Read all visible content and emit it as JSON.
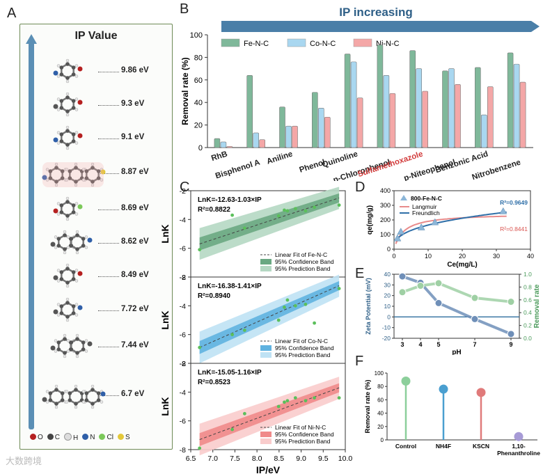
{
  "panel_labels": {
    "a": "A",
    "b": "B",
    "c": "C",
    "d": "D",
    "e": "E",
    "f": "F"
  },
  "panelA": {
    "title": "IP Value",
    "values": [
      "9.86 eV",
      "9.3 eV",
      "9.1 eV",
      "8.87 eV",
      "8.69 eV",
      "8.62 eV",
      "8.49 eV",
      "7.72 eV",
      "7.44 eV",
      "6.7 eV"
    ],
    "legend": [
      {
        "symbol": "O",
        "color": "#b52020"
      },
      {
        "symbol": "C",
        "color": "#444444"
      },
      {
        "symbol": "H",
        "color": "#dddddd"
      },
      {
        "symbol": "N",
        "color": "#2f5fa8"
      },
      {
        "symbol": "Cl",
        "color": "#7cc95a"
      },
      {
        "symbol": "S",
        "color": "#e3c83a"
      }
    ]
  },
  "watermark": "大数跨境",
  "chart_data": [
    {
      "id": "B",
      "type": "bar",
      "banner": "IP increasing",
      "title": "",
      "xlabel": "",
      "ylabel": "Removal rate (%)",
      "ylim": [
        0,
        100
      ],
      "yticks": [
        0,
        20,
        40,
        60,
        80,
        100
      ],
      "categories": [
        "RhB",
        "Bisphenol A",
        "Aniline",
        "Phenol",
        "Quinoline",
        "p-Chlorophenol",
        "Sulfamethoxazole",
        "p-Niteophenol",
        "Benzonic Acid",
        "Nitrobenzene"
      ],
      "highlight_category": "Sulfamethoxazole",
      "series": [
        {
          "name": "Fe-N-C",
          "color": "#7fb89a",
          "values": [
            8,
            64,
            36,
            49,
            83,
            91,
            86,
            68,
            71,
            84
          ]
        },
        {
          "name": "Co-N-C",
          "color": "#a9d7f0",
          "values": [
            5,
            13,
            19,
            35,
            76,
            64,
            70,
            70,
            29,
            74
          ]
        },
        {
          "name": "Ni-N-C",
          "color": "#f4a7a7",
          "values": [
            1,
            7,
            19,
            27,
            44,
            48,
            50,
            56,
            54,
            58
          ]
        }
      ]
    },
    {
      "id": "C",
      "type": "scatter",
      "xlabel": "IP/eV",
      "ylabel": "LnK",
      "xlim": [
        6.5,
        10.0
      ],
      "xticks": [
        "6.5",
        "7.0",
        "7.5",
        "8.0",
        "8.5",
        "9.0",
        "9.5",
        "10.0"
      ],
      "panels": [
        {
          "name": "Fe-N-C",
          "color": "#3b8a5c",
          "band_conf": "#6aa882",
          "band_pred": "#b5d8c3",
          "equation": "LnK=-12.63-1.03×IP",
          "r2": "R²=0.8822",
          "ylim": [
            -8,
            -2
          ],
          "yticks": [
            "-2",
            "-4",
            "-6",
            "-8"
          ],
          "points": [
            [
              6.7,
              -6.1
            ],
            [
              7.72,
              -4.6
            ],
            [
              8.49,
              -3.75
            ],
            [
              8.62,
              -3.35
            ],
            [
              8.69,
              -3.4
            ],
            [
              8.87,
              -3.25
            ],
            [
              9.1,
              -3.4
            ],
            [
              9.3,
              -3.15
            ],
            [
              9.86,
              -3.0
            ],
            [
              7.44,
              -3.7
            ]
          ],
          "fit": [
            [
              6.7,
              -5.7
            ],
            [
              9.86,
              -2.5
            ]
          ],
          "legend": [
            "Linear Fit of Fe-N-C",
            "95% Confidence Band",
            "95% Prediction Band"
          ]
        },
        {
          "name": "Co-N-C",
          "color": "#2e86c1",
          "band_conf": "#5fb2e0",
          "band_pred": "#bfe2f4",
          "equation": "LnK=-16.38-1.41×IP",
          "r2": "R²=0.8940",
          "ylim": [
            -8,
            -2
          ],
          "yticks": [
            "-2",
            "-4",
            "-6",
            "-8"
          ],
          "points": [
            [
              6.7,
              -6.9
            ],
            [
              7.44,
              -6.0
            ],
            [
              7.72,
              -5.7
            ],
            [
              8.49,
              -5.0
            ],
            [
              8.62,
              -4.1
            ],
            [
              8.69,
              -3.6
            ],
            [
              8.87,
              -4.0
            ],
            [
              9.1,
              -3.9
            ],
            [
              9.3,
              -5.2
            ],
            [
              9.86,
              -2.8
            ]
          ],
          "fit": [
            [
              6.7,
              -6.9
            ],
            [
              9.86,
              -2.6
            ]
          ],
          "legend": [
            "Linear Fit of Co-N-C",
            "95% Confidence Band",
            "95% Prediction Band"
          ]
        },
        {
          "name": "Ni-N-C",
          "color": "#d9534f",
          "band_conf": "#f08a8a",
          "band_pred": "#f9cccc",
          "equation": "LnK=-15.05-1.16×IP",
          "r2": "R²=0.8523",
          "ylim": [
            -8,
            -2
          ],
          "yticks": [
            "-2",
            "-4",
            "-6",
            "-8"
          ],
          "points": [
            [
              6.7,
              -7.9
            ],
            [
              7.44,
              -6.6
            ],
            [
              7.72,
              -5.5
            ],
            [
              8.49,
              -5.0
            ],
            [
              8.62,
              -4.7
            ],
            [
              8.69,
              -4.6
            ],
            [
              8.87,
              -4.4
            ],
            [
              9.1,
              -4.6
            ],
            [
              9.3,
              -4.4
            ],
            [
              9.86,
              -4.4
            ]
          ],
          "fit": [
            [
              6.7,
              -7.3
            ],
            [
              9.86,
              -3.7
            ]
          ],
          "legend": [
            "Linear Fit of Ni-N-C",
            "95% Confidence Band",
            "95% Prediction Band"
          ]
        }
      ]
    },
    {
      "id": "D",
      "type": "scatter",
      "xlabel": "Ce(mg/L)",
      "ylabel": "qe(mg/g)",
      "xlim": [
        0,
        40
      ],
      "ylim": [
        0,
        400
      ],
      "xticks": [
        "0",
        "10",
        "20",
        "30",
        "40"
      ],
      "yticks": [
        "0",
        "100",
        "200",
        "300",
        "400"
      ],
      "points_label": "800-Fe-N-C",
      "points": [
        [
          1,
          75
        ],
        [
          2,
          120
        ],
        [
          8,
          150
        ],
        [
          12,
          185
        ],
        [
          32,
          260
        ]
      ],
      "fits": [
        {
          "name": "Langmuir",
          "color": "#e88b8b",
          "r2": "R²=0.8441"
        },
        {
          "name": "Freundlich",
          "color": "#2f6fa8",
          "r2": "R²=0.9649"
        }
      ]
    },
    {
      "id": "E",
      "type": "line",
      "xlabel": "pH",
      "ylabel_left": "Zeta Potential (mV)",
      "ylabel_right": "Removal rate",
      "x": [
        3,
        4,
        5,
        7,
        9
      ],
      "ylim_left": [
        -20,
        40
      ],
      "ylim_right": [
        0.0,
        1.0
      ],
      "yticks_left": [
        "-20",
        "-10",
        "0",
        "10",
        "20",
        "30",
        "40"
      ],
      "yticks_right": [
        "0.0",
        "0.2",
        "0.4",
        "0.6",
        "0.8",
        "1.0"
      ],
      "series": [
        {
          "name": "Zeta Potential",
          "axis": "left",
          "color": "#6f8fb8",
          "values": [
            38,
            32,
            13,
            -2,
            -16
          ]
        },
        {
          "name": "Removal rate",
          "axis": "right",
          "color": "#9fd0a4",
          "values": [
            0.72,
            0.82,
            0.86,
            0.63,
            0.57
          ]
        }
      ]
    },
    {
      "id": "F",
      "type": "bar",
      "title": "",
      "ylabel": "Removal rate (%)",
      "ylim": [
        0,
        100
      ],
      "yticks": [
        "0",
        "20",
        "40",
        "60",
        "80",
        "100"
      ],
      "categories": [
        "Control",
        "NH4F",
        "KSCN",
        "1,10-Phenanthroline"
      ],
      "values": [
        88,
        76,
        71,
        5
      ],
      "colors": [
        "#8ccf9b",
        "#4a9fd0",
        "#e07a7a",
        "#a79bd6"
      ]
    }
  ]
}
